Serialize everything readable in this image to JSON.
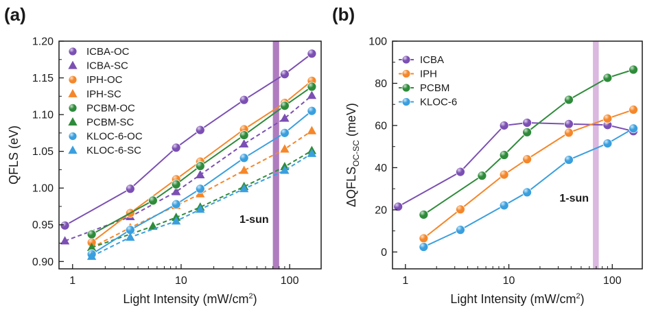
{
  "chart_data": [
    {
      "type": "scatter",
      "panel_label": "(a)",
      "xlabel": "Light Intensity (mW/cm",
      "xlabel_sup": "2",
      "xlabel_tail": ")",
      "ylabel": "QFLS (eV)",
      "x_scale": "log",
      "xlim": [
        0.75,
        195
      ],
      "ylim": [
        0.89,
        1.2
      ],
      "x_ticks": [
        {
          "v": 1,
          "label": "1"
        },
        {
          "v": 10,
          "label": "10"
        },
        {
          "v": 100,
          "label": "100"
        }
      ],
      "y_ticks": [
        {
          "v": 0.9,
          "label": "0.90"
        },
        {
          "v": 0.95,
          "label": "0.95"
        },
        {
          "v": 1.0,
          "label": "1.00"
        },
        {
          "v": 1.05,
          "label": "1.05"
        },
        {
          "v": 1.1,
          "label": "1.10"
        },
        {
          "v": 1.15,
          "label": "1.15"
        },
        {
          "v": 1.2,
          "label": "1.20"
        }
      ],
      "annotation": {
        "text": "1-sun",
        "x_range": [
          70,
          80
        ]
      },
      "legend_position": "top-left",
      "series": [
        {
          "name": "ICBA-OC",
          "color": "#7b4fb3",
          "marker": "circle",
          "line": "solid",
          "x": [
            0.85,
            3.4,
            9,
            15,
            38,
            90,
            160
          ],
          "y": [
            0.949,
            0.999,
            1.055,
            1.079,
            1.12,
            1.155,
            1.183
          ]
        },
        {
          "name": "ICBA-SC",
          "color": "#7b4fb3",
          "marker": "triangle",
          "line": "dashed",
          "x": [
            0.85,
            3.4,
            9,
            15,
            38,
            90,
            160
          ],
          "y": [
            0.928,
            0.961,
            0.995,
            1.018,
            1.06,
            1.095,
            1.126
          ]
        },
        {
          "name": "IPH-OC",
          "color": "#f5872a",
          "marker": "circle",
          "line": "solid",
          "x": [
            1.5,
            3.4,
            9,
            15,
            38,
            90,
            160
          ],
          "y": [
            0.926,
            0.966,
            1.012,
            1.036,
            1.08,
            1.116,
            1.146
          ]
        },
        {
          "name": "IPH-SC",
          "color": "#f5872a",
          "marker": "triangle",
          "line": "dashed",
          "x": [
            1.5,
            3.4,
            9,
            15,
            38,
            90,
            160
          ],
          "y": [
            0.919,
            0.946,
            0.976,
            0.992,
            1.024,
            1.053,
            1.078
          ]
        },
        {
          "name": "PCBM-OC",
          "color": "#2e8b3a",
          "marker": "circle",
          "line": "solid",
          "x": [
            1.5,
            5.5,
            9,
            15,
            38,
            90,
            160
          ],
          "y": [
            0.937,
            0.983,
            1.005,
            1.03,
            1.072,
            1.112,
            1.138
          ]
        },
        {
          "name": "PCBM-SC",
          "color": "#2e8b3a",
          "marker": "triangle",
          "line": "dashed",
          "x": [
            1.5,
            5.5,
            9,
            15,
            38,
            90,
            160
          ],
          "y": [
            0.919,
            0.948,
            0.96,
            0.974,
            1.002,
            1.029,
            1.051
          ]
        },
        {
          "name": "KLOC-6-OC",
          "color": "#3a9fde",
          "marker": "circle",
          "line": "solid",
          "x": [
            1.5,
            3.4,
            9,
            15,
            38,
            90,
            160
          ],
          "y": [
            0.91,
            0.943,
            0.978,
            0.999,
            1.041,
            1.075,
            1.105
          ]
        },
        {
          "name": "KLOC-6-SC",
          "color": "#3a9fde",
          "marker": "triangle",
          "line": "dashed",
          "x": [
            1.5,
            3.4,
            9,
            15,
            38,
            90,
            160
          ],
          "y": [
            0.907,
            0.933,
            0.955,
            0.971,
            0.999,
            1.024,
            1.047
          ]
        }
      ]
    },
    {
      "type": "line",
      "panel_label": "(b)",
      "xlabel": "Light Intensity (mW/cm",
      "xlabel_sup": "2",
      "xlabel_tail": ")",
      "ylabel": "ΔQFLS",
      "ylabel_sub": "OC-SC",
      "ylabel_tail": " (meV)",
      "x_scale": "log",
      "xlim": [
        0.75,
        195
      ],
      "ylim": [
        -8,
        100
      ],
      "x_ticks": [
        {
          "v": 1,
          "label": "1"
        },
        {
          "v": 10,
          "label": "10"
        },
        {
          "v": 100,
          "label": "100"
        }
      ],
      "y_ticks": [
        {
          "v": 0,
          "label": "0"
        },
        {
          "v": 20,
          "label": "20"
        },
        {
          "v": 40,
          "label": "40"
        },
        {
          "v": 60,
          "label": "60"
        },
        {
          "v": 80,
          "label": "80"
        },
        {
          "v": 100,
          "label": "100"
        }
      ],
      "annotation": {
        "text": "1-sun",
        "x_range": [
          65,
          74
        ]
      },
      "legend_position": "top-left",
      "series": [
        {
          "name": "ICBA",
          "color": "#7b4fb3",
          "marker": "circle",
          "line": "solid",
          "x": [
            0.85,
            3.4,
            9,
            15,
            38,
            90,
            160
          ],
          "y": [
            21.5,
            38,
            60,
            61.3,
            60.7,
            60.2,
            57.3
          ]
        },
        {
          "name": "IPH",
          "color": "#f5872a",
          "marker": "circle",
          "line": "solid",
          "x": [
            1.5,
            3.4,
            9,
            15,
            38,
            90,
            160
          ],
          "y": [
            6.5,
            20.2,
            36.7,
            44,
            56.6,
            63.3,
            67.5
          ]
        },
        {
          "name": "PCBM",
          "color": "#2e8b3a",
          "marker": "circle",
          "line": "solid",
          "x": [
            1.5,
            5.5,
            9,
            15,
            38,
            90,
            160
          ],
          "y": [
            17.7,
            36.2,
            46,
            56.8,
            72.2,
            82.6,
            86.5
          ]
        },
        {
          "name": "KLOC-6",
          "color": "#3a9fde",
          "marker": "circle",
          "line": "solid",
          "x": [
            1.5,
            3.4,
            9,
            15,
            38,
            90,
            160
          ],
          "y": [
            2.4,
            10.5,
            22.1,
            28.3,
            43.7,
            51.5,
            58.6
          ]
        }
      ]
    }
  ]
}
